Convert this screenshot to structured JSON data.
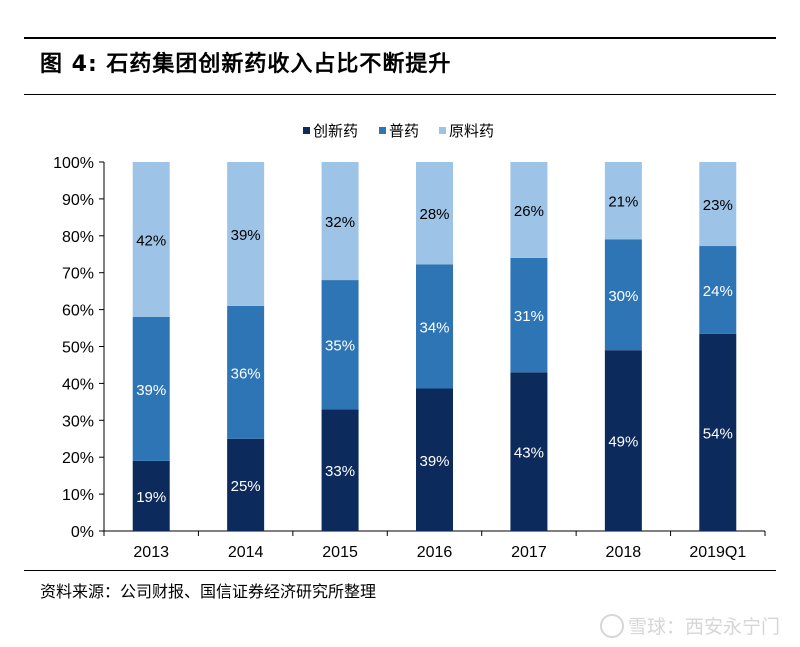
{
  "figure": {
    "title": "图 4:  石药集团创新药收入占比不断提升",
    "source": "资料来源：公司财报、国信证券经济研究所整理",
    "watermark": "雪球：西安永宁门"
  },
  "colors": {
    "series": [
      "#0d2a5c",
      "#2e75b6",
      "#9dc3e6"
    ],
    "axis": "#000000",
    "data_label_dark_bg": "#ffffff",
    "data_label_light_bg": "#000000"
  },
  "chart_data": {
    "type": "bar",
    "stacked": true,
    "percent": true,
    "categories": [
      "2013",
      "2014",
      "2015",
      "2016",
      "2017",
      "2018",
      "2019Q1"
    ],
    "series": [
      {
        "name": "创新药",
        "values": [
          19,
          25,
          33,
          39,
          43,
          49,
          54
        ],
        "labels": [
          "19%",
          "25%",
          "33%",
          "39%",
          "43%",
          "49%",
          "54%"
        ]
      },
      {
        "name": "普药",
        "values": [
          39,
          36,
          35,
          34,
          31,
          30,
          24
        ],
        "labels": [
          "39%",
          "36%",
          "35%",
          "34%",
          "31%",
          "30%",
          "24%"
        ]
      },
      {
        "name": "原料药",
        "values": [
          42,
          39,
          32,
          28,
          26,
          21,
          23
        ],
        "labels": [
          "42%",
          "39%",
          "32%",
          "28%",
          "26%",
          "21%",
          "23%"
        ]
      }
    ],
    "ylim": [
      0,
      100
    ],
    "yticks": [
      "0%",
      "10%",
      "20%",
      "30%",
      "40%",
      "50%",
      "60%",
      "70%",
      "80%",
      "90%",
      "100%"
    ],
    "legend_position": "top-center",
    "grid": false
  }
}
